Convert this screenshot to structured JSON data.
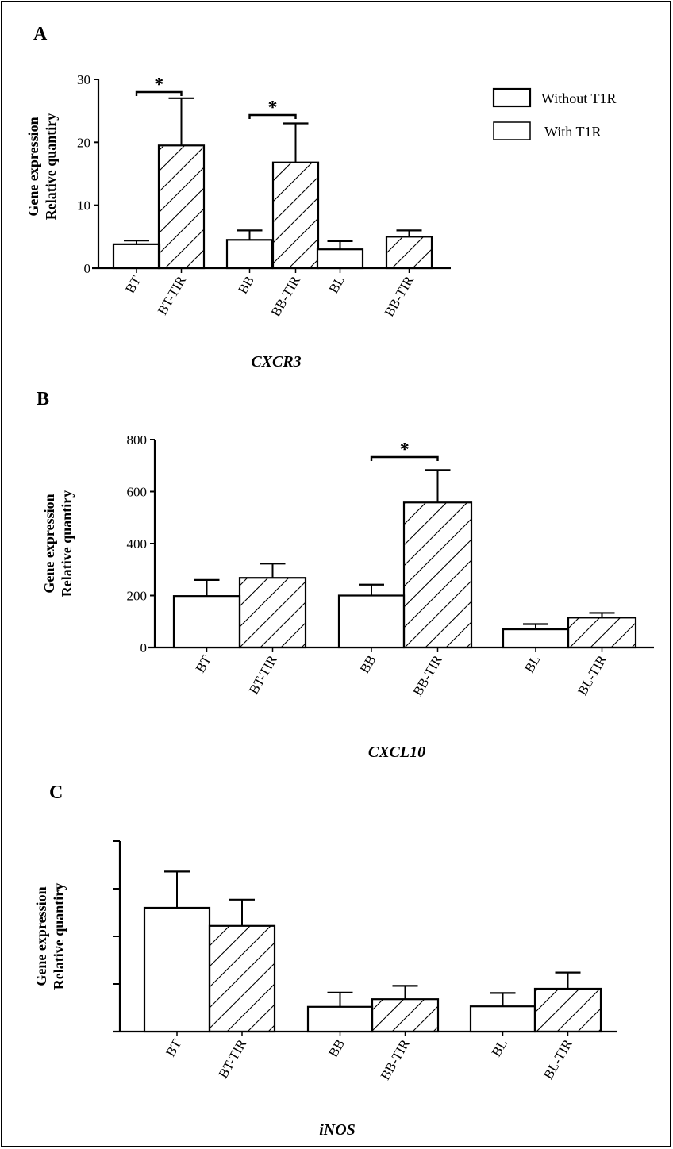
{
  "legend": [
    {
      "label": "Without T1R",
      "pattern": "none"
    },
    {
      "label": "With T1R",
      "pattern": "none"
    }
  ],
  "chart_data": [
    {
      "panel": "A",
      "type": "bar",
      "gene": "CXCR3",
      "ylabel_lines": [
        "Gene expression",
        "Relative quantiry"
      ],
      "ylim": [
        0,
        30
      ],
      "yticks": [
        "0",
        "10",
        "20",
        "30"
      ],
      "categories": [
        "BT",
        "BT-TIR",
        "BB",
        "BB-TIR",
        "BL",
        "BB-TIR"
      ],
      "values": [
        3.8,
        19.5,
        4.5,
        16.8,
        3.0,
        5.0
      ],
      "errors": [
        0.6,
        7.5,
        1.5,
        6.2,
        1.3,
        1.0
      ],
      "hatched": [
        false,
        true,
        false,
        true,
        false,
        true
      ],
      "significance": [
        {
          "pair": [
            0,
            1
          ],
          "label": "*"
        },
        {
          "pair": [
            2,
            3
          ],
          "label": "*"
        }
      ]
    },
    {
      "panel": "B",
      "type": "bar",
      "gene": "CXCL10",
      "ylabel_lines": [
        "Gene expression",
        "Relative quantiry"
      ],
      "ylim": [
        0,
        800
      ],
      "yticks": [
        "0",
        "200",
        "400",
        "600",
        "800"
      ],
      "categories": [
        "BT",
        "BT-TIR",
        "BB",
        "BB-TIR",
        "BL",
        "BL-TIR"
      ],
      "values": [
        198,
        268,
        200,
        558,
        70,
        115
      ],
      "errors": [
        62,
        55,
        42,
        125,
        20,
        18
      ],
      "hatched": [
        false,
        true,
        false,
        true,
        false,
        true
      ],
      "significance": [
        {
          "pair": [
            2,
            3
          ],
          "label": "*"
        }
      ]
    },
    {
      "panel": "C",
      "type": "bar",
      "gene": "iNOS",
      "ylabel_lines": [
        "Gene expression",
        "Relative quantiry"
      ],
      "ylim": [
        0,
        4
      ],
      "yticks": [],
      "categories": [
        "BT",
        "BT-TIR",
        "BB",
        "BB-TIR",
        "BL",
        "BL-TIR"
      ],
      "values": [
        2.6,
        2.22,
        0.52,
        0.68,
        0.53,
        0.9
      ],
      "errors": [
        0.76,
        0.55,
        0.3,
        0.28,
        0.28,
        0.34
      ],
      "hatched": [
        false,
        true,
        false,
        true,
        false,
        true
      ],
      "significance": []
    }
  ]
}
